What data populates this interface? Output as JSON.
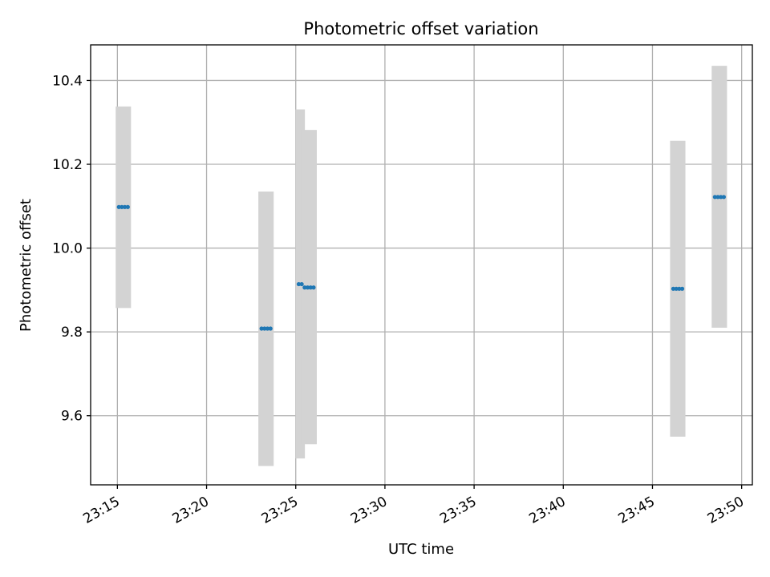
{
  "chart_data": {
    "type": "scatter",
    "title": "Photometric offset variation",
    "xlabel": "UTC time",
    "ylabel": "Photometric offset",
    "x_axis": {
      "unit": "minutes",
      "range": [
        "23:13.5",
        "23:50.6"
      ]
    },
    "xticks": [
      "23:15",
      "23:20",
      "23:25",
      "23:30",
      "23:35",
      "23:40",
      "23:45",
      "23:50"
    ],
    "ylim": [
      9.435,
      10.485
    ],
    "yticks": [
      9.6,
      9.8,
      10.0,
      10.2,
      10.4
    ],
    "ytick_labels": [
      "9.6",
      "9.8",
      "10.0",
      "10.2",
      "10.4"
    ],
    "grid": true,
    "point_color": "#1f77b4",
    "band_color": "#d3d3d3",
    "groups": [
      {
        "x": [
          "23:15:05",
          "23:15:15",
          "23:15:25",
          "23:15:35"
        ],
        "y": 10.098,
        "y_low": 9.857,
        "y_high": 10.338
      },
      {
        "x": [
          "23:23:05",
          "23:23:15",
          "23:23:25",
          "23:23:35"
        ],
        "y": 9.808,
        "y_low": 9.48,
        "y_high": 10.135
      },
      {
        "x": [
          "23:25:10",
          "23:25:20"
        ],
        "y": 9.914,
        "y_low": 9.498,
        "y_high": 10.331
      },
      {
        "x": [
          "23:25:30",
          "23:25:40",
          "23:25:50",
          "23:26:00"
        ],
        "y": 9.906,
        "y_low": 9.532,
        "y_high": 10.282
      },
      {
        "x": [
          "23:46:10",
          "23:46:20",
          "23:46:30",
          "23:46:40"
        ],
        "y": 9.903,
        "y_low": 9.55,
        "y_high": 10.256
      },
      {
        "x": [
          "23:48:30",
          "23:48:40",
          "23:48:50",
          "23:49:00"
        ],
        "y": 10.122,
        "y_low": 9.81,
        "y_high": 10.435
      }
    ]
  }
}
